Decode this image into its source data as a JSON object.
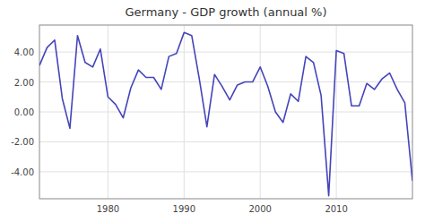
{
  "chart_data": {
    "type": "line",
    "title": "Germany - GDP growth (annual %)",
    "x": [
      1971,
      1972,
      1973,
      1974,
      1975,
      1976,
      1977,
      1978,
      1979,
      1980,
      1981,
      1982,
      1983,
      1984,
      1985,
      1986,
      1987,
      1988,
      1989,
      1990,
      1991,
      1992,
      1993,
      1994,
      1995,
      1996,
      1997,
      1998,
      1999,
      2000,
      2001,
      2002,
      2003,
      2004,
      2005,
      2006,
      2007,
      2008,
      2009,
      2010,
      2011,
      2012,
      2013,
      2014,
      2015,
      2016,
      2017,
      2018,
      2019,
      2020
    ],
    "values": [
      3.1,
      4.3,
      4.8,
      0.9,
      -1.1,
      5.1,
      3.3,
      3.0,
      4.2,
      1.0,
      0.5,
      -0.4,
      1.6,
      2.8,
      2.3,
      2.3,
      1.5,
      3.7,
      3.9,
      5.3,
      5.1,
      2.2,
      -1.0,
      2.5,
      1.7,
      0.8,
      1.8,
      2.0,
      2.0,
      3.0,
      1.7,
      0.0,
      -0.7,
      1.2,
      0.7,
      3.7,
      3.3,
      1.1,
      -5.6,
      4.1,
      3.9,
      0.4,
      0.4,
      1.9,
      1.5,
      2.2,
      2.6,
      1.5,
      0.6,
      -4.6
    ],
    "color": "#4444bb",
    "xlim": [
      1971,
      2020
    ],
    "ylim": [
      -5.8,
      5.8
    ],
    "xticks": [
      1980,
      1990,
      2000,
      2010
    ],
    "yticks": [
      {
        "value": -4.0,
        "label": "-4.00"
      },
      {
        "value": -2.0,
        "label": "-2.00"
      },
      {
        "value": 0.0,
        "label": "0.00"
      },
      {
        "value": 2.0,
        "label": "2.00"
      },
      {
        "value": 4.0,
        "label": "4.00"
      }
    ],
    "grid": true
  }
}
